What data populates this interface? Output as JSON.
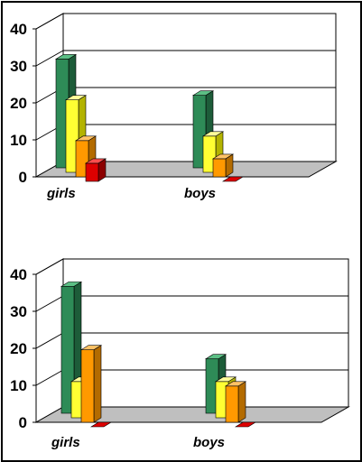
{
  "chart_data": [
    {
      "type": "bar",
      "categories": [
        "girls",
        "boys"
      ],
      "series": [
        {
          "values": [
            30,
            20
          ]
        },
        {
          "values": [
            20,
            10
          ]
        },
        {
          "values": [
            10,
            5
          ]
        },
        {
          "values": [
            5,
            0
          ]
        }
      ],
      "yticks": [
        "0",
        "10",
        "20",
        "30",
        "40"
      ],
      "ylim": [
        0,
        40
      ],
      "grid": true,
      "legend": "none",
      "three_d": true
    },
    {
      "type": "bar",
      "categories": [
        "girls",
        "boys"
      ],
      "series": [
        {
          "values": [
            35,
            15
          ]
        },
        {
          "values": [
            10,
            10
          ]
        },
        {
          "values": [
            20,
            10
          ]
        },
        {
          "values": [
            0,
            0
          ]
        }
      ],
      "yticks": [
        "0",
        "10",
        "20",
        "30",
        "40"
      ],
      "ylim": [
        0,
        40
      ],
      "grid": true,
      "legend": "none",
      "three_d": true
    }
  ],
  "colors": {
    "series_fill": [
      "#2e8b57",
      "#ffff33",
      "#ff9900",
      "#dd0000"
    ],
    "series_side": [
      "#1d5c39",
      "#b3b300",
      "#b36b00",
      "#8c0000"
    ],
    "series_top": [
      "#5cbf85",
      "#ffff99",
      "#ffc266",
      "#ff4d4d"
    ],
    "floor": "#bfbfbf",
    "wall": "#ffffff",
    "grid": "#000000"
  }
}
